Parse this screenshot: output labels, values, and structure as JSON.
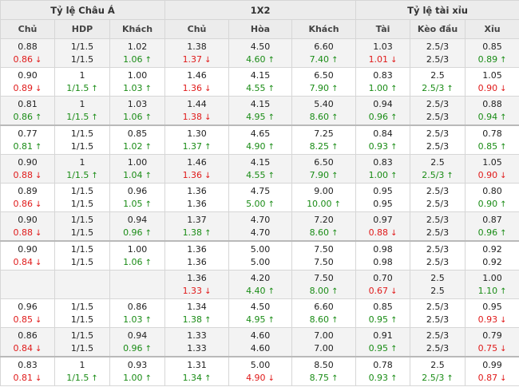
{
  "header": {
    "groups": [
      "Tỷ lệ Châu Á",
      "1X2",
      "Tỷ lệ tài xỉu"
    ],
    "columns": [
      "Chủ",
      "HDP",
      "Khách",
      "Chủ",
      "Hòa",
      "Khách",
      "Tài",
      "Kèo đầu",
      "Xỉu"
    ]
  },
  "colors": {
    "up": "#1a8c16",
    "down": "#e01a1a",
    "header_bg": "#ececec",
    "stripe_bg": "#f3f3f3"
  },
  "icons": {
    "up": "arrow-up-icon",
    "down": "arrow-down-icon"
  },
  "rows": [
    {
      "striped": true,
      "sep": false,
      "cells": [
        {
          "o": "0.88",
          "c": "0.86",
          "d": "down"
        },
        {
          "o": "1/1.5",
          "c": "1/1.5",
          "d": ""
        },
        {
          "o": "1.02",
          "c": "1.06",
          "d": "up"
        },
        {
          "o": "1.38",
          "c": "1.37",
          "d": "down"
        },
        {
          "o": "4.50",
          "c": "4.60",
          "d": "up"
        },
        {
          "o": "6.60",
          "c": "7.40",
          "d": "up"
        },
        {
          "o": "1.03",
          "c": "1.01",
          "d": "down"
        },
        {
          "o": "2.5/3",
          "c": "2.5/3",
          "d": ""
        },
        {
          "o": "0.85",
          "c": "0.89",
          "d": "up"
        }
      ]
    },
    {
      "striped": false,
      "sep": false,
      "cells": [
        {
          "o": "0.90",
          "c": "0.89",
          "d": "down"
        },
        {
          "o": "1",
          "c": "1/1.5",
          "d": "up"
        },
        {
          "o": "1.00",
          "c": "1.03",
          "d": "up"
        },
        {
          "o": "1.46",
          "c": "1.36",
          "d": "down"
        },
        {
          "o": "4.15",
          "c": "4.55",
          "d": "up"
        },
        {
          "o": "6.50",
          "c": "7.90",
          "d": "up"
        },
        {
          "o": "0.83",
          "c": "1.00",
          "d": "up"
        },
        {
          "o": "2.5",
          "c": "2.5/3",
          "d": "up"
        },
        {
          "o": "1.05",
          "c": "0.90",
          "d": "down"
        }
      ]
    },
    {
      "striped": true,
      "sep": false,
      "cells": [
        {
          "o": "0.81",
          "c": "0.86",
          "d": "up"
        },
        {
          "o": "1",
          "c": "1/1.5",
          "d": "up"
        },
        {
          "o": "1.03",
          "c": "1.06",
          "d": "up"
        },
        {
          "o": "1.44",
          "c": "1.38",
          "d": "down"
        },
        {
          "o": "4.15",
          "c": "4.95",
          "d": "up"
        },
        {
          "o": "5.40",
          "c": "8.60",
          "d": "up"
        },
        {
          "o": "0.94",
          "c": "0.96",
          "d": "up"
        },
        {
          "o": "2.5/3",
          "c": "2.5/3",
          "d": ""
        },
        {
          "o": "0.88",
          "c": "0.94",
          "d": "up"
        }
      ]
    },
    {
      "striped": false,
      "sep": true,
      "cells": [
        {
          "o": "0.77",
          "c": "0.81",
          "d": "up"
        },
        {
          "o": "1/1.5",
          "c": "1/1.5",
          "d": ""
        },
        {
          "o": "0.85",
          "c": "1.02",
          "d": "up"
        },
        {
          "o": "1.30",
          "c": "1.37",
          "d": "up"
        },
        {
          "o": "4.65",
          "c": "4.90",
          "d": "up"
        },
        {
          "o": "7.25",
          "c": "8.25",
          "d": "up"
        },
        {
          "o": "0.84",
          "c": "0.93",
          "d": "up"
        },
        {
          "o": "2.5/3",
          "c": "2.5/3",
          "d": ""
        },
        {
          "o": "0.78",
          "c": "0.85",
          "d": "up"
        }
      ]
    },
    {
      "striped": true,
      "sep": false,
      "cells": [
        {
          "o": "0.90",
          "c": "0.88",
          "d": "down"
        },
        {
          "o": "1",
          "c": "1/1.5",
          "d": "up"
        },
        {
          "o": "1.00",
          "c": "1.04",
          "d": "up"
        },
        {
          "o": "1.46",
          "c": "1.36",
          "d": "down"
        },
        {
          "o": "4.15",
          "c": "4.55",
          "d": "up"
        },
        {
          "o": "6.50",
          "c": "7.90",
          "d": "up"
        },
        {
          "o": "0.83",
          "c": "1.00",
          "d": "up"
        },
        {
          "o": "2.5",
          "c": "2.5/3",
          "d": "up"
        },
        {
          "o": "1.05",
          "c": "0.90",
          "d": "down"
        }
      ]
    },
    {
      "striped": false,
      "sep": false,
      "cells": [
        {
          "o": "0.89",
          "c": "0.86",
          "d": "down"
        },
        {
          "o": "1/1.5",
          "c": "1/1.5",
          "d": ""
        },
        {
          "o": "0.96",
          "c": "1.05",
          "d": "up"
        },
        {
          "o": "1.36",
          "c": "1.36",
          "d": ""
        },
        {
          "o": "4.75",
          "c": "5.00",
          "d": "up"
        },
        {
          "o": "9.00",
          "c": "10.00",
          "d": "up"
        },
        {
          "o": "0.95",
          "c": "0.95",
          "d": ""
        },
        {
          "o": "2.5/3",
          "c": "2.5/3",
          "d": ""
        },
        {
          "o": "0.80",
          "c": "0.90",
          "d": "up"
        }
      ]
    },
    {
      "striped": true,
      "sep": false,
      "cells": [
        {
          "o": "0.90",
          "c": "0.88",
          "d": "down"
        },
        {
          "o": "1/1.5",
          "c": "1/1.5",
          "d": ""
        },
        {
          "o": "0.94",
          "c": "0.96",
          "d": "up"
        },
        {
          "o": "1.37",
          "c": "1.38",
          "d": "up"
        },
        {
          "o": "4.70",
          "c": "4.70",
          "d": ""
        },
        {
          "o": "7.20",
          "c": "8.60",
          "d": "up"
        },
        {
          "o": "0.97",
          "c": "0.88",
          "d": "down"
        },
        {
          "o": "2.5/3",
          "c": "2.5/3",
          "d": ""
        },
        {
          "o": "0.87",
          "c": "0.96",
          "d": "up"
        }
      ]
    },
    {
      "striped": false,
      "sep": true,
      "cells": [
        {
          "o": "0.90",
          "c": "0.84",
          "d": "down"
        },
        {
          "o": "1/1.5",
          "c": "1/1.5",
          "d": ""
        },
        {
          "o": "1.00",
          "c": "1.06",
          "d": "up"
        },
        {
          "o": "1.36",
          "c": "1.36",
          "d": ""
        },
        {
          "o": "5.00",
          "c": "5.00",
          "d": ""
        },
        {
          "o": "7.50",
          "c": "7.50",
          "d": ""
        },
        {
          "o": "0.98",
          "c": "0.98",
          "d": ""
        },
        {
          "o": "2.5/3",
          "c": "2.5/3",
          "d": ""
        },
        {
          "o": "0.92",
          "c": "0.92",
          "d": ""
        }
      ]
    },
    {
      "striped": true,
      "sep": false,
      "cells": [
        {
          "o": "",
          "c": "",
          "d": ""
        },
        {
          "o": "",
          "c": "",
          "d": ""
        },
        {
          "o": "",
          "c": "",
          "d": ""
        },
        {
          "o": "1.36",
          "c": "1.33",
          "d": "down"
        },
        {
          "o": "4.20",
          "c": "4.40",
          "d": "up"
        },
        {
          "o": "7.50",
          "c": "8.00",
          "d": "up"
        },
        {
          "o": "0.70",
          "c": "0.67",
          "d": "down"
        },
        {
          "o": "2.5",
          "c": "2.5",
          "d": ""
        },
        {
          "o": "1.00",
          "c": "1.10",
          "d": "up"
        }
      ]
    },
    {
      "striped": false,
      "sep": false,
      "cells": [
        {
          "o": "0.96",
          "c": "0.85",
          "d": "down"
        },
        {
          "o": "1/1.5",
          "c": "1/1.5",
          "d": ""
        },
        {
          "o": "0.86",
          "c": "1.03",
          "d": "up"
        },
        {
          "o": "1.34",
          "c": "1.38",
          "d": "up"
        },
        {
          "o": "4.50",
          "c": "4.95",
          "d": "up"
        },
        {
          "o": "6.60",
          "c": "8.60",
          "d": "up"
        },
        {
          "o": "0.85",
          "c": "0.95",
          "d": "up"
        },
        {
          "o": "2.5/3",
          "c": "2.5/3",
          "d": ""
        },
        {
          "o": "0.95",
          "c": "0.93",
          "d": "down"
        }
      ]
    },
    {
      "striped": true,
      "sep": false,
      "cells": [
        {
          "o": "0.86",
          "c": "0.84",
          "d": "down"
        },
        {
          "o": "1/1.5",
          "c": "1/1.5",
          "d": ""
        },
        {
          "o": "0.94",
          "c": "0.96",
          "d": "up"
        },
        {
          "o": "1.33",
          "c": "1.33",
          "d": ""
        },
        {
          "o": "4.60",
          "c": "4.60",
          "d": ""
        },
        {
          "o": "7.00",
          "c": "7.00",
          "d": ""
        },
        {
          "o": "0.91",
          "c": "0.95",
          "d": "up"
        },
        {
          "o": "2.5/3",
          "c": "2.5/3",
          "d": ""
        },
        {
          "o": "0.79",
          "c": "0.75",
          "d": "down"
        }
      ]
    },
    {
      "striped": false,
      "sep": true,
      "cells": [
        {
          "o": "0.83",
          "c": "0.81",
          "d": "down"
        },
        {
          "o": "1",
          "c": "1/1.5",
          "d": "up"
        },
        {
          "o": "0.93",
          "c": "1.00",
          "d": "up"
        },
        {
          "o": "1.31",
          "c": "1.34",
          "d": "up"
        },
        {
          "o": "5.00",
          "c": "4.90",
          "d": "down"
        },
        {
          "o": "8.50",
          "c": "8.75",
          "d": "up"
        },
        {
          "o": "0.78",
          "c": "0.93",
          "d": "up"
        },
        {
          "o": "2.5",
          "c": "2.5/3",
          "d": "up"
        },
        {
          "o": "0.99",
          "c": "0.87",
          "d": "down"
        }
      ]
    }
  ]
}
